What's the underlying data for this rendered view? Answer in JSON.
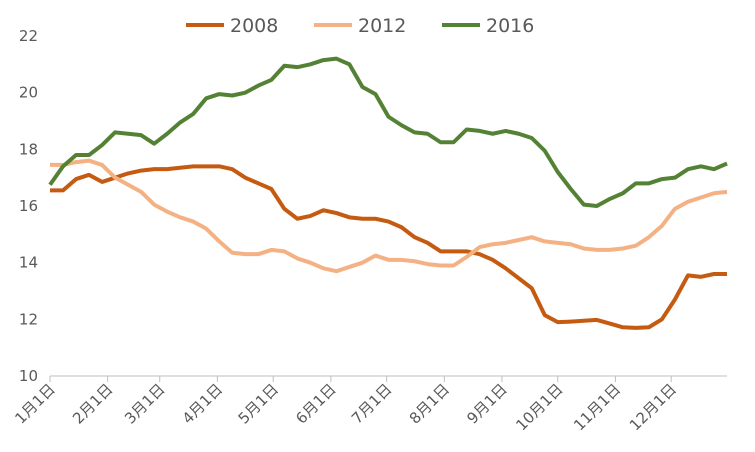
{
  "chart_data": {
    "type": "line",
    "x": [
      0,
      7,
      14,
      21,
      28,
      35,
      42,
      49,
      56,
      63,
      70,
      77,
      84,
      91,
      98,
      105,
      112,
      119,
      126,
      133,
      140,
      147,
      154,
      161,
      168,
      175,
      182,
      189,
      196,
      203,
      210,
      217,
      224,
      231,
      238,
      245,
      252,
      259,
      266,
      273,
      280,
      287,
      294,
      301,
      308,
      315,
      322,
      329,
      336,
      343,
      350,
      357,
      364
    ],
    "xlim": [
      0,
      364
    ],
    "xticks": [
      {
        "value": 0,
        "label": "1月1日"
      },
      {
        "value": 31,
        "label": "2月1日"
      },
      {
        "value": 59,
        "label": "3月1日"
      },
      {
        "value": 90,
        "label": "4月1日"
      },
      {
        "value": 120,
        "label": "5月1日"
      },
      {
        "value": 151,
        "label": "6月1日"
      },
      {
        "value": 181,
        "label": "7月1日"
      },
      {
        "value": 212,
        "label": "8月1日"
      },
      {
        "value": 243,
        "label": "9月1日"
      },
      {
        "value": 273,
        "label": "10月1日"
      },
      {
        "value": 304,
        "label": "11月1日"
      },
      {
        "value": 334,
        "label": "12月1日"
      }
    ],
    "ylim": [
      10,
      22
    ],
    "yticks": [
      10,
      12,
      14,
      16,
      18,
      20,
      22
    ],
    "grid": false,
    "legend": "top",
    "series": [
      {
        "name": "2008",
        "color": "#c55a11",
        "values": [
          16.55,
          16.55,
          16.95,
          17.1,
          16.85,
          17.0,
          17.15,
          17.25,
          17.3,
          17.3,
          17.35,
          17.4,
          17.4,
          17.4,
          17.3,
          17.0,
          16.8,
          16.6,
          15.9,
          15.55,
          15.65,
          15.85,
          15.75,
          15.6,
          15.55,
          15.55,
          15.45,
          15.25,
          14.9,
          14.7,
          14.4,
          14.4,
          14.4,
          14.3,
          14.1,
          13.8,
          13.45,
          13.1,
          12.15,
          11.9,
          11.92,
          11.95,
          11.98,
          11.85,
          11.72,
          11.7,
          11.72,
          12.0,
          12.7,
          13.55,
          13.5,
          13.6,
          13.6
        ]
      },
      {
        "name": "2012",
        "color": "#f4b183",
        "values": [
          17.45,
          17.45,
          17.55,
          17.6,
          17.45,
          17.0,
          16.75,
          16.5,
          16.05,
          15.8,
          15.6,
          15.45,
          15.2,
          14.75,
          14.35,
          14.3,
          14.3,
          14.45,
          14.4,
          14.15,
          14.0,
          13.8,
          13.7,
          13.85,
          14.0,
          14.25,
          14.1,
          14.1,
          14.05,
          13.95,
          13.9,
          13.9,
          14.2,
          14.55,
          14.65,
          14.7,
          14.8,
          14.9,
          14.75,
          14.7,
          14.65,
          14.5,
          14.45,
          14.45,
          14.5,
          14.6,
          14.9,
          15.3,
          15.9,
          16.15,
          16.3,
          16.45,
          16.5
        ]
      },
      {
        "name": "2016",
        "color": "#548235",
        "values": [
          16.75,
          17.4,
          17.8,
          17.8,
          18.15,
          18.6,
          18.55,
          18.5,
          18.2,
          18.55,
          18.95,
          19.25,
          19.8,
          19.95,
          19.9,
          20.0,
          20.25,
          20.45,
          20.95,
          20.9,
          21.0,
          21.15,
          21.2,
          21.0,
          20.2,
          19.95,
          19.15,
          18.85,
          18.6,
          18.55,
          18.25,
          18.25,
          18.7,
          18.65,
          18.55,
          18.65,
          18.55,
          18.4,
          17.95,
          17.2,
          16.6,
          16.05,
          16.0,
          16.25,
          16.45,
          16.8,
          16.8,
          16.95,
          17.0,
          17.3,
          17.4,
          17.3,
          17.5
        ]
      }
    ]
  }
}
